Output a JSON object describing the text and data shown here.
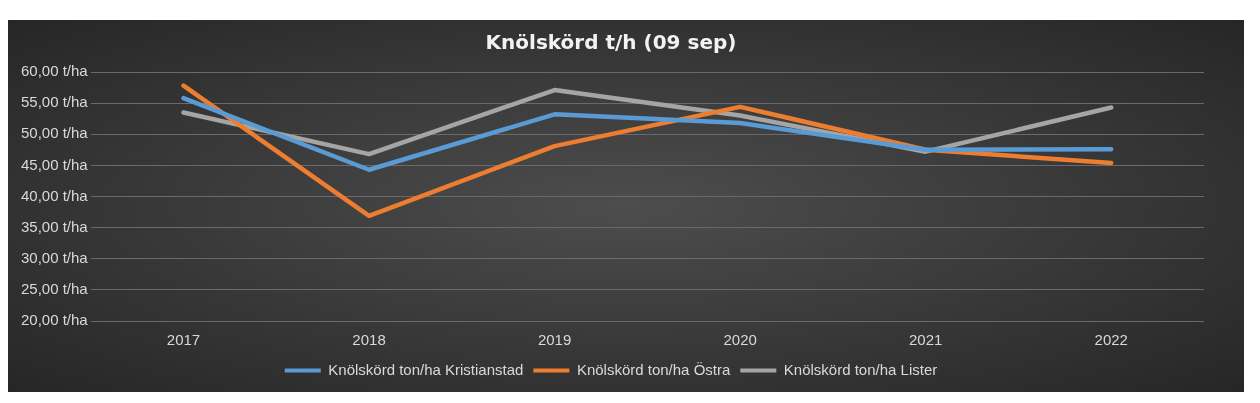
{
  "chart_data": {
    "type": "line",
    "title": "Knölskörd t/h (09 sep)",
    "categories": [
      "2017",
      "2018",
      "2019",
      "2020",
      "2021",
      "2022"
    ],
    "series": [
      {
        "name": "Knölskörd ton/ha Kristianstad",
        "color": "#5b9bd5",
        "values": [
          55.8,
          44.3,
          53.2,
          51.8,
          47.5,
          47.6
        ]
      },
      {
        "name": "Knölskörd ton/ha Östra",
        "color": "#ed7d31",
        "values": [
          57.8,
          36.9,
          48.1,
          54.4,
          47.5,
          45.4
        ]
      },
      {
        "name": "Knölskörd ton/ha Lister",
        "color": "#a5a5a5",
        "values": [
          53.5,
          46.8,
          57.1,
          53.0,
          47.2,
          54.3
        ]
      }
    ],
    "ylim": [
      20,
      60
    ],
    "yticks": [
      {
        "value": 20,
        "label": "20,00 t/ha"
      },
      {
        "value": 25,
        "label": "25,00 t/ha"
      },
      {
        "value": 30,
        "label": "30,00 t/ha"
      },
      {
        "value": 35,
        "label": "35,00 t/ha"
      },
      {
        "value": 40,
        "label": "40,00 t/ha"
      },
      {
        "value": 45,
        "label": "45,00 t/ha"
      },
      {
        "value": 50,
        "label": "50,00 t/ha"
      },
      {
        "value": 55,
        "label": "55,00 t/ha"
      },
      {
        "value": 60,
        "label": "60,00 t/ha"
      }
    ],
    "grid": "y",
    "legend": "bottom",
    "marker": "none",
    "line_style": "solid"
  }
}
